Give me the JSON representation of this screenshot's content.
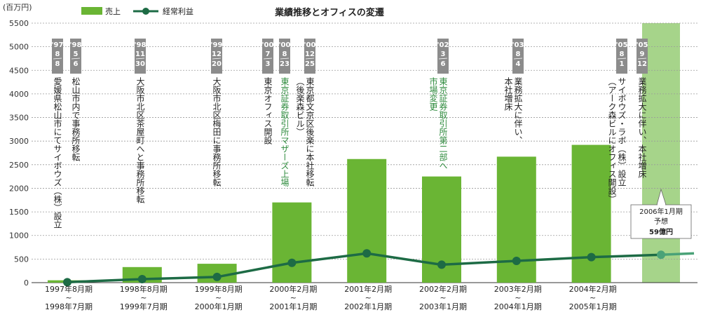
{
  "chart_data": {
    "type": "bar",
    "title": "業績推移とオフィスの変遷",
    "unit_label": "(百万円)",
    "ylim": [
      0,
      5500
    ],
    "yticks": [
      0,
      500,
      1000,
      1500,
      2000,
      2500,
      3000,
      3500,
      4000,
      4500,
      5000,
      5500
    ],
    "categories": [
      {
        "top": "1997年8月期",
        "mid": "~",
        "bottom": "1998年7月期"
      },
      {
        "top": "1998年8月期",
        "mid": "~",
        "bottom": "1999年7月期"
      },
      {
        "top": "1999年8月期",
        "mid": "~",
        "bottom": "2000年1月期"
      },
      {
        "top": "2000年2月期",
        "mid": "~",
        "bottom": "2001年1月期"
      },
      {
        "top": "2001年2月期",
        "mid": "~",
        "bottom": "2002年1月期"
      },
      {
        "top": "2002年2月期",
        "mid": "~",
        "bottom": "2003年1月期"
      },
      {
        "top": "2003年2月期",
        "mid": "~",
        "bottom": "2004年1月期"
      },
      {
        "top": "2004年2月期",
        "mid": "~",
        "bottom": "2005年1月期"
      }
    ],
    "legend": [
      {
        "name": "売上",
        "type": "bar",
        "color": "#6ab534"
      },
      {
        "name": "経常利益",
        "type": "line",
        "color": "#1d6b45"
      }
    ],
    "series": [
      {
        "name": "売上",
        "type": "bar",
        "color": "#6ab534",
        "values": [
          50,
          330,
          400,
          1700,
          2620,
          2250,
          2670,
          2920
        ]
      },
      {
        "name": "経常利益",
        "type": "line",
        "color": "#1d6b45",
        "values": [
          10,
          75,
          120,
          420,
          620,
          380,
          460,
          540
        ]
      }
    ],
    "forecast": {
      "line_value": 590,
      "line_end_value": 620,
      "callout": {
        "line1": "2006年1月期",
        "line2": "予想",
        "line3": "59億円"
      }
    },
    "events": [
      {
        "date": [
          "'97",
          "8",
          "8"
        ],
        "text": "愛媛県松山市にてサイボウズ（株）設立",
        "color": "#222222"
      },
      {
        "date": [
          "'98",
          "5",
          "6"
        ],
        "text": "松山市内で事務所移転",
        "color": "#222222"
      },
      {
        "date": [
          "'98",
          "11",
          "30"
        ],
        "text": "大阪市北区茶屋町へと事務所移転",
        "color": "#222222"
      },
      {
        "date": [
          "'99",
          "12",
          "20"
        ],
        "text": "大阪市北区梅田に事務所移転",
        "color": "#222222"
      },
      {
        "date": [
          "'00",
          "7",
          "3"
        ],
        "text": "東京オフィス開設",
        "color": "#222222"
      },
      {
        "date": [
          "'00",
          "8",
          "23"
        ],
        "text": "東京証券取引所マザーズ上場",
        "color": "#2e8b3d"
      },
      {
        "date": [
          "'00",
          "12",
          "25"
        ],
        "text": "東京都文京区後楽に本社移転",
        "text2": "（後楽森ビル）",
        "color": "#222222"
      },
      {
        "date": [
          "'02",
          "3",
          "6"
        ],
        "text": "東京証券取引所第二部へ",
        "text2": "市場変更",
        "color": "#2e8b3d"
      },
      {
        "date": [
          "'03",
          "8",
          "4"
        ],
        "text": "業務拡大に伴い、",
        "text2": "本社増床",
        "color": "#222222"
      },
      {
        "date": [
          "'05",
          "8",
          "1"
        ],
        "text": "サイボウズ・ラボ（株）設立",
        "text2": "（アーク森ビルにオフィス開設）",
        "color": "#222222"
      },
      {
        "date": [
          "'05",
          "9",
          "12"
        ],
        "text": "業務拡大に伴い、本社増床",
        "color": "#222222"
      }
    ]
  }
}
